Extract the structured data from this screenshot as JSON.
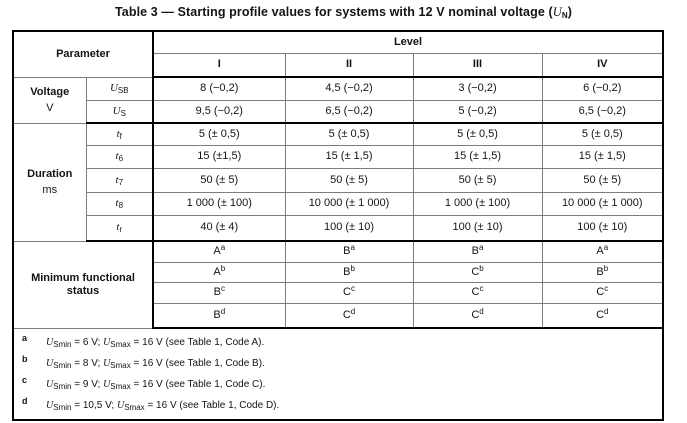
{
  "page": {
    "title": "Table 3 — Starting profile values for systems with 12 V nominal voltage (*U*_{N})"
  },
  "table": {
    "header": {
      "parameter": "Parameter",
      "level": "Level",
      "levels": [
        "I",
        "II",
        "III",
        "IV"
      ]
    },
    "voltage": {
      "label": "Voltage",
      "unit": "V",
      "rows": [
        {
          "symbol": "*U*_{SB}",
          "values": [
            "8 (−0,2)",
            "4,5 (−0,2)",
            "3 (−0,2)",
            "6 (−0,2)"
          ]
        },
        {
          "symbol": "*U*_{S}",
          "values": [
            "9,5 (−0,2)",
            "6,5 (−0,2)",
            "5 (−0,2)",
            "6,5 (−0,2)"
          ]
        }
      ]
    },
    "duration": {
      "label": "Duration",
      "unit": "ms",
      "rows": [
        {
          "symbol": "*t*_{f}",
          "values": [
            "5 (± 0,5)",
            "5 (± 0,5)",
            "5 (± 0,5)",
            "5 (± 0,5)"
          ]
        },
        {
          "symbol": "*t*_{6}",
          "values": [
            "15 (±1,5)",
            "15 (± 1,5)",
            "15 (± 1,5)",
            "15 (± 1,5)"
          ]
        },
        {
          "symbol": "*t*_{7}",
          "values": [
            "50 (± 5)",
            "50 (± 5)",
            "50 (± 5)",
            "50 (± 5)"
          ]
        },
        {
          "symbol": "*t*_{8}",
          "values": [
            "1 000 (± 100)",
            "10 000 (± 1 000)",
            "1 000 (± 100)",
            "10 000 (± 1 000)"
          ]
        },
        {
          "symbol": "*t*_{r}",
          "values": [
            "40 (± 4)",
            "100 (± 10)",
            "100 (± 10)",
            "100 (± 10)"
          ]
        }
      ]
    },
    "status": {
      "label": "Minimum functional status",
      "rows": [
        {
          "values": [
            "A^{a}",
            "B^{a}",
            "B^{a}",
            "A^{a}"
          ]
        },
        {
          "values": [
            "A^{b}",
            "B^{b}",
            "C^{b}",
            "B^{b}"
          ]
        },
        {
          "values": [
            "B^{c}",
            "C^{c}",
            "C^{c}",
            "C^{c}"
          ]
        },
        {
          "values": [
            "B^{d}",
            "C^{d}",
            "C^{d}",
            "C^{d}"
          ]
        }
      ]
    },
    "footnotes": [
      {
        "marker": "a",
        "text": "*U*_{Smin} = 6 V; *U*_{Smax} = 16 V (see Table 1, Code A)."
      },
      {
        "marker": "b",
        "text": "*U*_{Smin} = 8 V; *U*_{Smax} = 16 V (see Table 1, Code B)."
      },
      {
        "marker": "c",
        "text": "*U*_{Smin} = 9 V; *U*_{Smax} = 16 V (see Table 1, Code C)."
      },
      {
        "marker": "d",
        "text": "*U*_{Smin} = 10,5 V; *U*_{Smax} = 16 V (see Table 1, Code D)."
      }
    ]
  }
}
